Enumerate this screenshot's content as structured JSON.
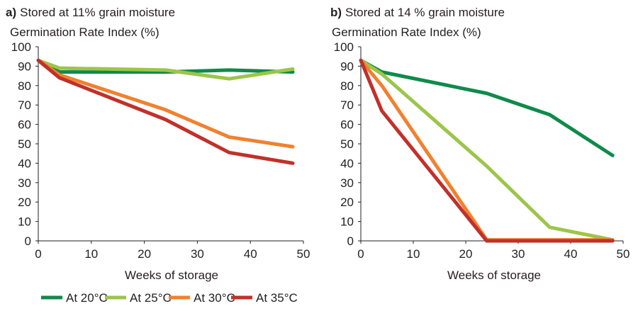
{
  "legend": [
    {
      "label": "At 20°C",
      "color": "#0f8a4a"
    },
    {
      "label": "At 25°C",
      "color": "#9cc54a"
    },
    {
      "label": "At 30°C",
      "color": "#f0812f"
    },
    {
      "label": "At 35°C",
      "color": "#c0312a"
    }
  ],
  "chart_data": [
    {
      "type": "line",
      "panel_letter": "a)",
      "title": "Stored at 11% grain moisture",
      "ylabel": "Germination Rate Index (%)",
      "xlabel": "Weeks of storage",
      "xlim": [
        0,
        50
      ],
      "ylim": [
        0,
        100
      ],
      "xticks": [
        0,
        10,
        20,
        30,
        40,
        50
      ],
      "yticks": [
        0,
        10,
        20,
        30,
        40,
        50,
        60,
        70,
        80,
        90,
        100
      ],
      "grid": false,
      "series": [
        {
          "name": "At 20°C",
          "color": "#0f8a4a",
          "x": [
            0,
            4,
            24,
            36,
            48
          ],
          "y": [
            93,
            87,
            87,
            88,
            87
          ]
        },
        {
          "name": "At 25°C",
          "color": "#9cc54a",
          "x": [
            0,
            4,
            24,
            36,
            48
          ],
          "y": [
            93,
            89,
            88,
            83.5,
            88.5
          ]
        },
        {
          "name": "At 30°C",
          "color": "#f0812f",
          "x": [
            0,
            4,
            24,
            36,
            48
          ],
          "y": [
            93,
            85.5,
            67.5,
            53.5,
            48.5
          ]
        },
        {
          "name": "At 35°C",
          "color": "#c0312a",
          "x": [
            0,
            4,
            24,
            36,
            48
          ],
          "y": [
            93,
            84,
            62.5,
            45.5,
            40
          ]
        }
      ]
    },
    {
      "type": "line",
      "panel_letter": "b)",
      "title": "Stored at 14 % grain moisture",
      "ylabel": "Germination Rate Index (%)",
      "xlabel": "Weeks of storage",
      "xlim": [
        0,
        50
      ],
      "ylim": [
        0,
        100
      ],
      "xticks": [
        0,
        10,
        20,
        30,
        40,
        50
      ],
      "yticks": [
        0,
        10,
        20,
        30,
        40,
        50,
        60,
        70,
        80,
        90,
        100
      ],
      "grid": false,
      "series": [
        {
          "name": "At 20°C",
          "color": "#0f8a4a",
          "x": [
            0,
            4,
            24,
            36,
            48
          ],
          "y": [
            93,
            87,
            76,
            65,
            44
          ]
        },
        {
          "name": "At 25°C",
          "color": "#9cc54a",
          "x": [
            0,
            4,
            24,
            36,
            48
          ],
          "y": [
            93,
            86,
            38.5,
            7,
            0.5
          ]
        },
        {
          "name": "At 30°C",
          "color": "#f0812f",
          "x": [
            0,
            4,
            24,
            36,
            48
          ],
          "y": [
            93,
            80,
            0.5,
            0.5,
            0.5
          ]
        },
        {
          "name": "At 35°C",
          "color": "#c0312a",
          "x": [
            0,
            4,
            24,
            36,
            48
          ],
          "y": [
            93,
            67,
            0,
            0,
            0
          ]
        }
      ]
    }
  ]
}
